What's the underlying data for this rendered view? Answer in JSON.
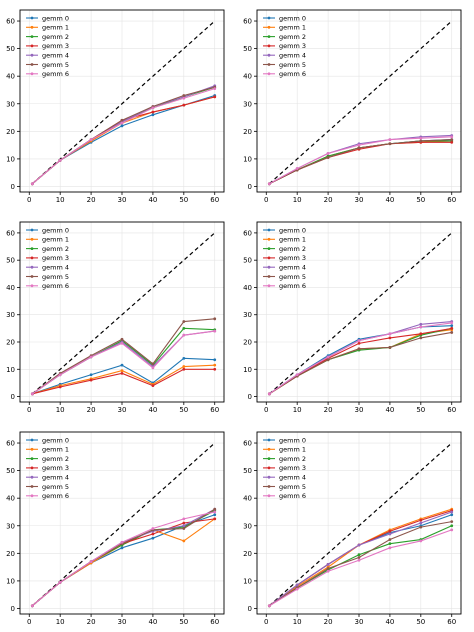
{
  "chart_data": [
    {
      "type": "line",
      "x": [
        1,
        10,
        20,
        30,
        40,
        50,
        60
      ],
      "xlim": [
        -3,
        63
      ],
      "ylim": [
        -2,
        64
      ],
      "xticks": [
        0,
        10,
        20,
        30,
        40,
        50,
        60
      ],
      "yticks": [
        0,
        10,
        20,
        30,
        40,
        50,
        60
      ],
      "grid": true,
      "legend": "top-left",
      "reference_line": {
        "x": [
          1,
          60
        ],
        "y": [
          1,
          60
        ],
        "style": "dashed",
        "color": "#000000"
      },
      "series": [
        {
          "name": "gemm 0",
          "values": [
            1,
            9.5,
            16,
            22,
            26,
            29.5,
            33
          ]
        },
        {
          "name": "gemm 1",
          "values": [
            1,
            9.5,
            16.5,
            23,
            27,
            29.5,
            32.5
          ]
        },
        {
          "name": "gemm 2",
          "values": [
            1,
            9.5,
            17,
            23.5,
            28.5,
            32.5,
            36
          ]
        },
        {
          "name": "gemm 3",
          "values": [
            1,
            9.5,
            17,
            24,
            27,
            29.5,
            32.5
          ]
        },
        {
          "name": "gemm 4",
          "values": [
            1,
            9.5,
            17,
            23.5,
            29,
            32.5,
            36.5
          ]
        },
        {
          "name": "gemm 5",
          "values": [
            1,
            9.5,
            17,
            24,
            29,
            33,
            36
          ]
        },
        {
          "name": "gemm 6",
          "values": [
            1,
            9.5,
            17,
            23,
            28.5,
            32,
            35.5
          ]
        }
      ]
    },
    {
      "type": "line",
      "x": [
        1,
        10,
        20,
        30,
        40,
        50,
        60
      ],
      "xlim": [
        -3,
        63
      ],
      "ylim": [
        -2,
        64
      ],
      "xticks": [
        0,
        10,
        20,
        30,
        40,
        50,
        60
      ],
      "yticks": [
        0,
        10,
        20,
        30,
        40,
        50,
        60
      ],
      "grid": true,
      "legend": "top-left",
      "reference_line": {
        "x": [
          1,
          60
        ],
        "y": [
          1,
          60
        ],
        "style": "dashed",
        "color": "#000000"
      },
      "series": [
        {
          "name": "gemm 0",
          "values": [
            1,
            6,
            11,
            14,
            15.5,
            16.5,
            17
          ]
        },
        {
          "name": "gemm 1",
          "values": [
            1,
            6,
            11,
            14,
            15.5,
            16,
            16.5
          ]
        },
        {
          "name": "gemm 2",
          "values": [
            1,
            6,
            11,
            14,
            15.5,
            16.5,
            16.5
          ]
        },
        {
          "name": "gemm 3",
          "values": [
            1,
            6,
            10.5,
            13.5,
            15.5,
            16,
            16
          ]
        },
        {
          "name": "gemm 4",
          "values": [
            1,
            6.5,
            12,
            15.5,
            17,
            18,
            18.5
          ]
        },
        {
          "name": "gemm 5",
          "values": [
            1,
            6,
            10.5,
            14,
            15.5,
            16.5,
            17
          ]
        },
        {
          "name": "gemm 6",
          "values": [
            1,
            6.5,
            12,
            15,
            17,
            17.5,
            18
          ]
        }
      ]
    },
    {
      "type": "line",
      "x": [
        1,
        10,
        20,
        30,
        40,
        50,
        60
      ],
      "xlim": [
        -3,
        63
      ],
      "ylim": [
        -2,
        64
      ],
      "xticks": [
        0,
        10,
        20,
        30,
        40,
        50,
        60
      ],
      "yticks": [
        0,
        10,
        20,
        30,
        40,
        50,
        60
      ],
      "grid": true,
      "legend": "top-left",
      "reference_line": {
        "x": [
          1,
          60
        ],
        "y": [
          1,
          60
        ],
        "style": "dashed",
        "color": "#000000"
      },
      "series": [
        {
          "name": "gemm 0",
          "values": [
            1,
            4.5,
            8,
            11.5,
            5,
            14,
            13.5
          ]
        },
        {
          "name": "gemm 1",
          "values": [
            1,
            4,
            6.5,
            9.5,
            4.5,
            11,
            11.5
          ]
        },
        {
          "name": "gemm 2",
          "values": [
            1,
            8,
            14.5,
            20.5,
            11.5,
            25,
            24.5
          ]
        },
        {
          "name": "gemm 3",
          "values": [
            1,
            3.5,
            6,
            8.5,
            4,
            10,
            10
          ]
        },
        {
          "name": "gemm 4",
          "values": [
            1,
            8,
            14.5,
            20,
            11,
            22.5,
            24
          ]
        },
        {
          "name": "gemm 5",
          "values": [
            1,
            8.5,
            15,
            21,
            12,
            27.5,
            28.5
          ]
        },
        {
          "name": "gemm 6",
          "values": [
            1,
            8,
            14.5,
            19.5,
            10.5,
            22.5,
            24
          ]
        }
      ]
    },
    {
      "type": "line",
      "x": [
        1,
        10,
        20,
        30,
        40,
        50,
        60
      ],
      "xlim": [
        -3,
        63
      ],
      "ylim": [
        -2,
        64
      ],
      "xticks": [
        0,
        10,
        20,
        30,
        40,
        50,
        60
      ],
      "yticks": [
        0,
        10,
        20,
        30,
        40,
        50,
        60
      ],
      "grid": true,
      "legend": "top-left",
      "reference_line": {
        "x": [
          1,
          60
        ],
        "y": [
          1,
          60
        ],
        "style": "dashed",
        "color": "#000000"
      },
      "series": [
        {
          "name": "gemm 0",
          "values": [
            1,
            8,
            15,
            21,
            23,
            25.5,
            26
          ]
        },
        {
          "name": "gemm 1",
          "values": [
            1,
            7.5,
            13.5,
            17.5,
            18,
            23,
            24.5
          ]
        },
        {
          "name": "gemm 2",
          "values": [
            1,
            7.5,
            13.5,
            17,
            18,
            22.5,
            25
          ]
        },
        {
          "name": "gemm 3",
          "values": [
            1,
            7.5,
            14,
            19.5,
            21.5,
            23,
            25
          ]
        },
        {
          "name": "gemm 4",
          "values": [
            1,
            8,
            14.5,
            20.5,
            23,
            26.5,
            27.5
          ]
        },
        {
          "name": "gemm 5",
          "values": [
            1,
            7.5,
            13.5,
            17.5,
            18,
            21.5,
            23.5
          ]
        },
        {
          "name": "gemm 6",
          "values": [
            1,
            8,
            14.5,
            20.5,
            23,
            25.5,
            27
          ]
        }
      ]
    },
    {
      "type": "line",
      "x": [
        1,
        10,
        20,
        30,
        40,
        50,
        60
      ],
      "xlim": [
        -3,
        63
      ],
      "ylim": [
        -2,
        64
      ],
      "xticks": [
        0,
        10,
        20,
        30,
        40,
        50,
        60
      ],
      "yticks": [
        0,
        10,
        20,
        30,
        40,
        50,
        60
      ],
      "grid": true,
      "legend": "top-left",
      "reference_line": {
        "x": [
          1,
          60
        ],
        "y": [
          1,
          60
        ],
        "style": "dashed",
        "color": "#000000"
      },
      "series": [
        {
          "name": "gemm 0",
          "values": [
            1,
            9.5,
            16.5,
            22,
            25.5,
            30,
            34
          ]
        },
        {
          "name": "gemm 1",
          "values": [
            1,
            9.5,
            16.5,
            23,
            28.5,
            24.5,
            32.5
          ]
        },
        {
          "name": "gemm 2",
          "values": [
            1,
            9.5,
            17,
            23,
            28.5,
            29.5,
            35.5
          ]
        },
        {
          "name": "gemm 3",
          "values": [
            1,
            9.5,
            17,
            23.5,
            27,
            31,
            32.5
          ]
        },
        {
          "name": "gemm 4",
          "values": [
            1,
            9.5,
            17,
            24,
            28,
            30,
            36
          ]
        },
        {
          "name": "gemm 5",
          "values": [
            1,
            9.5,
            17,
            23.5,
            28.5,
            29,
            36
          ]
        },
        {
          "name": "gemm 6",
          "values": [
            1,
            9.5,
            17,
            24,
            29,
            32.5,
            35
          ]
        }
      ]
    },
    {
      "type": "line",
      "x": [
        1,
        10,
        20,
        30,
        40,
        50,
        60
      ],
      "xlim": [
        -3,
        63
      ],
      "ylim": [
        -2,
        64
      ],
      "xticks": [
        0,
        10,
        20,
        30,
        40,
        50,
        60
      ],
      "yticks": [
        0,
        10,
        20,
        30,
        40,
        50,
        60
      ],
      "grid": true,
      "legend": "top-left",
      "reference_line": {
        "x": [
          1,
          60
        ],
        "y": [
          1,
          60
        ],
        "style": "dashed",
        "color": "#000000"
      },
      "series": [
        {
          "name": "gemm 0",
          "values": [
            1,
            8.5,
            16,
            23,
            27.5,
            30,
            34
          ]
        },
        {
          "name": "gemm 1",
          "values": [
            1,
            8,
            15,
            23,
            28.5,
            32.5,
            36
          ]
        },
        {
          "name": "gemm 2",
          "values": [
            1,
            7.5,
            14,
            19.5,
            23.5,
            25,
            30
          ]
        },
        {
          "name": "gemm 3",
          "values": [
            1,
            8.5,
            16,
            23,
            28,
            32,
            35.5
          ]
        },
        {
          "name": "gemm 4",
          "values": [
            1,
            8.5,
            16,
            23,
            27,
            31,
            35
          ]
        },
        {
          "name": "gemm 5",
          "values": [
            1,
            7.5,
            14.5,
            18.5,
            25,
            29.5,
            31.5
          ]
        },
        {
          "name": "gemm 6",
          "values": [
            1,
            7,
            13.5,
            17.5,
            22,
            24.5,
            28.5
          ]
        }
      ]
    }
  ],
  "colors": [
    "#1f77b4",
    "#ff7f0e",
    "#2ca02c",
    "#d62728",
    "#9467bd",
    "#8c564b",
    "#e377c2"
  ]
}
